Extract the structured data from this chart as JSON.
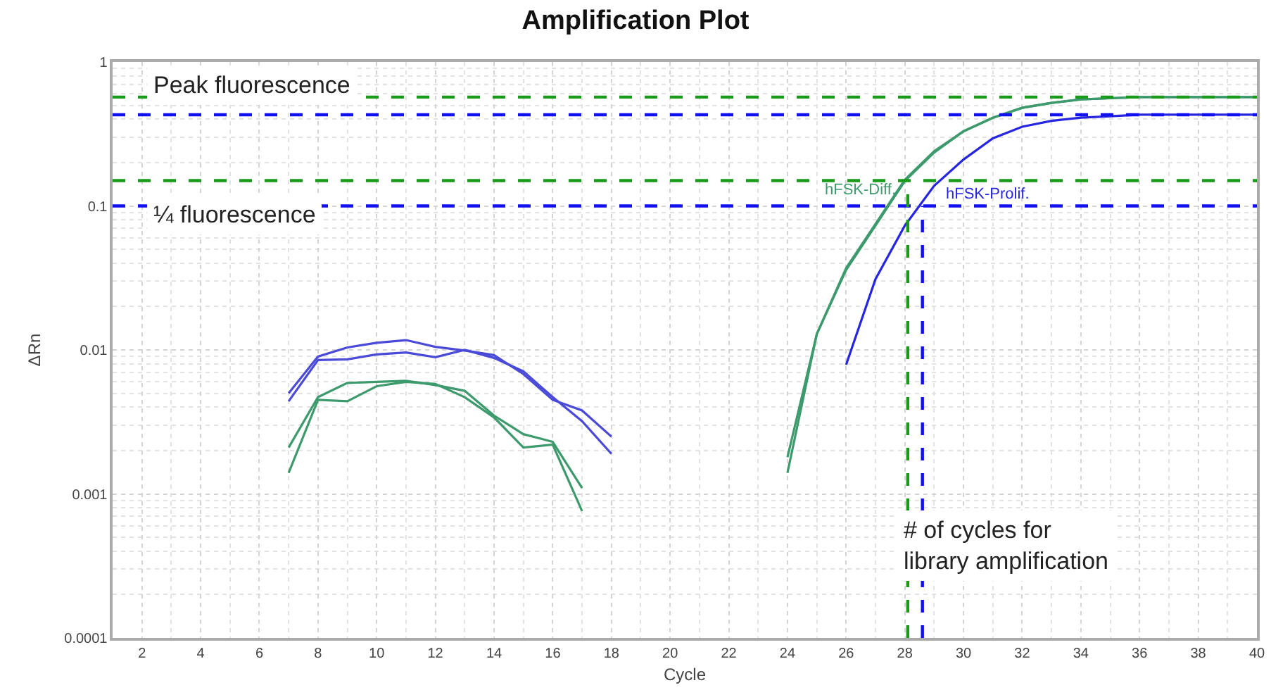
{
  "chart_data": {
    "type": "line",
    "title": "Amplification Plot",
    "xlabel": "Cycle",
    "ylabel": "ΔRn",
    "xlim": [
      1,
      40
    ],
    "xticks": [
      2,
      4,
      6,
      8,
      10,
      12,
      14,
      16,
      18,
      20,
      22,
      24,
      26,
      28,
      30,
      32,
      34,
      36,
      38,
      40
    ],
    "ylim": [
      0.0001,
      1
    ],
    "yticks": [
      0.0001,
      0.001,
      0.01,
      0.1,
      1
    ],
    "log": true,
    "grid": true,
    "legend": false,
    "marker": "none",
    "line_style": "solid",
    "series": [
      {
        "color": "#4a4ad8",
        "x": [
          7,
          8,
          9,
          10,
          11,
          12,
          13,
          14,
          15,
          16,
          17,
          18
        ],
        "values": [
          0.005,
          0.009,
          0.0104,
          0.0112,
          0.0117,
          0.0105,
          0.0099,
          0.0092,
          0.0068,
          0.0045,
          0.0038,
          0.0025
        ]
      },
      {
        "color": "#4a4ad8",
        "x": [
          7,
          8,
          9,
          10,
          11,
          12,
          13,
          14,
          15,
          16,
          17,
          18
        ],
        "values": [
          0.0044,
          0.0085,
          0.0086,
          0.0093,
          0.0096,
          0.0089,
          0.01,
          0.0088,
          0.0071,
          0.0047,
          0.0032,
          0.0019
        ]
      },
      {
        "color": "#3c9a6c",
        "x": [
          7,
          8,
          9,
          10,
          11,
          12,
          13,
          14,
          15,
          16,
          17
        ],
        "values": [
          0.0021,
          0.0047,
          0.0059,
          0.006,
          0.0061,
          0.0057,
          0.0052,
          0.0035,
          0.0026,
          0.0023,
          0.0011
        ]
      },
      {
        "color": "#3c9a6c",
        "x": [
          7,
          8,
          9,
          10,
          11,
          12,
          13,
          14,
          15,
          16,
          17
        ],
        "values": [
          0.0014,
          0.0045,
          0.0044,
          0.0056,
          0.006,
          0.0058,
          0.0047,
          0.0034,
          0.0021,
          0.0022,
          0.00076
        ]
      },
      {
        "name": "hFSK-Diff.",
        "color": "#3c9a6c",
        "x": [
          24,
          25,
          26,
          27,
          28,
          29,
          30,
          31,
          32,
          33,
          34,
          35,
          36,
          37,
          38,
          39,
          40
        ],
        "values": [
          0.0014,
          0.0129,
          0.036,
          0.073,
          0.149,
          0.235,
          0.33,
          0.41,
          0.48,
          0.52,
          0.55,
          0.56,
          0.57,
          0.57,
          0.57,
          0.57,
          0.57
        ]
      },
      {
        "color": "#3c9a6c",
        "x": [
          24,
          25,
          26,
          27,
          28,
          29,
          30,
          31,
          32,
          33,
          34,
          35,
          36,
          37,
          38,
          39,
          40
        ],
        "values": [
          0.0018,
          0.0129,
          0.037,
          0.075,
          0.152,
          0.24,
          0.33,
          0.41,
          0.48,
          0.52,
          0.55,
          0.56,
          0.57,
          0.57,
          0.57,
          0.57,
          0.57
        ]
      },
      {
        "name": "hFSK-Prolif.",
        "color": "#2626e0",
        "x": [
          26,
          27,
          28,
          29,
          30,
          31,
          32,
          33,
          34,
          35,
          36,
          37,
          38,
          39,
          40
        ],
        "values": [
          0.0079,
          0.031,
          0.073,
          0.138,
          0.21,
          0.295,
          0.355,
          0.39,
          0.41,
          0.42,
          0.43,
          0.43,
          0.43,
          0.43,
          0.43
        ]
      }
    ],
    "ref_lines": [
      {
        "axis": "y",
        "value": 0.57,
        "color": "#1a9a1a",
        "line_style": "dashed"
      },
      {
        "axis": "y",
        "value": 0.43,
        "color": "#1010f0",
        "line_style": "dashed"
      },
      {
        "axis": "y",
        "value": 0.15,
        "color": "#1a9a1a",
        "line_style": "dashed"
      },
      {
        "axis": "y",
        "value": 0.1,
        "color": "#1010f0",
        "line_style": "dashed"
      },
      {
        "axis": "x",
        "value": 28.1,
        "color": "#1a9a1a",
        "line_style": "dashed"
      },
      {
        "axis": "x",
        "value": 28.6,
        "color": "#1010f0",
        "line_style": "dashed"
      }
    ],
    "annotations": [
      "Peak fluorescence",
      "¼ fluorescence",
      "# of cycles for\nlibrary amplification"
    ]
  }
}
